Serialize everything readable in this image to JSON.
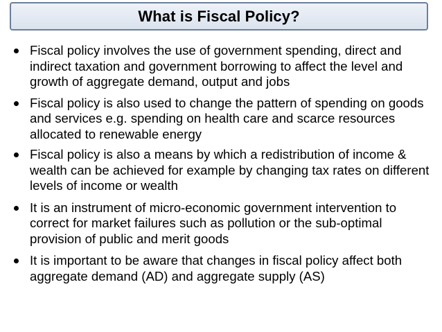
{
  "slide": {
    "title": "What is Fiscal Policy?",
    "bullets": [
      "Fiscal policy involves the use of government spending, direct and indirect taxation and government borrowing to affect the level and growth of aggregate demand, output and jobs",
      "Fiscal policy is also used to change the pattern of spending on goods and services e.g. spending on health care and scarce resources allocated to renewable energy",
      "Fiscal policy is also a means by which a redistribution of income & wealth can be achieved for example by changing tax rates on different levels of income or wealth",
      "It is an instrument of micro-economic government intervention to correct for market failures such as pollution or the sub-optimal provision of public and merit goods",
      "It is important to be aware that changes in fiscal policy affect both aggregate demand (AD) and aggregate supply (AS)"
    ]
  },
  "colors": {
    "title_border": "#6b7f9a",
    "title_fill": "#dbe3ef",
    "text": "#000000",
    "background": "#ffffff"
  }
}
